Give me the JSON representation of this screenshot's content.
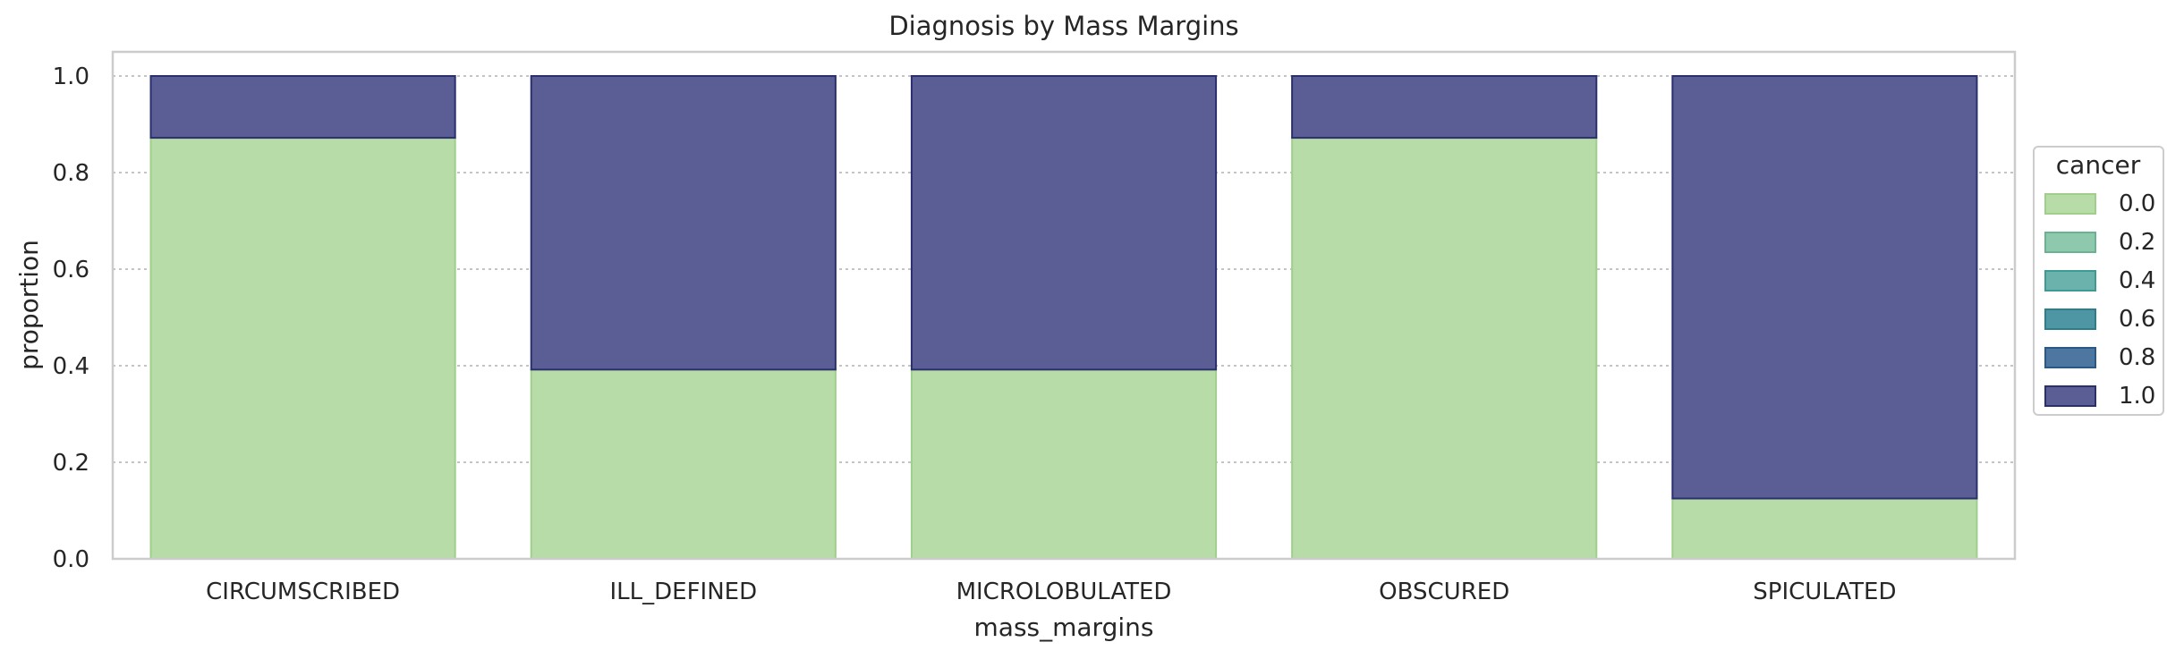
{
  "chart_data": {
    "type": "bar",
    "stacked": true,
    "normalized": true,
    "title": "Diagnosis by Mass Margins",
    "xlabel": "mass_margins",
    "ylabel": "proportion",
    "ylim": [
      0,
      1.05
    ],
    "yticks": [
      "0.0",
      "0.2",
      "0.4",
      "0.6",
      "0.8",
      "1.0"
    ],
    "ytick_values": [
      0,
      0.2,
      0.4,
      0.6,
      0.8,
      1.0
    ],
    "grid": "horizontal dotted",
    "categories": [
      "CIRCUMSCRIBED",
      "ILL_DEFINED",
      "MICROLOBULATED",
      "OBSCURED",
      "SPICULATED"
    ],
    "series": [
      {
        "name": "0.0",
        "color": "#b7dca7",
        "edge": "#a0cf8c",
        "values": [
          0.872,
          0.392,
          0.392,
          0.872,
          0.125
        ]
      },
      {
        "name": "1.0",
        "color": "#5b5e95",
        "edge": "#2a2f6e",
        "values": [
          0.128,
          0.608,
          0.608,
          0.128,
          0.875
        ]
      }
    ],
    "legend": {
      "title": "cancer",
      "position": "right",
      "entries": [
        {
          "label": "0.0",
          "color": "#b7dca7",
          "edge": "#a0cf8c"
        },
        {
          "label": "0.2",
          "color": "#8ec9ad",
          "edge": "#6bb293"
        },
        {
          "label": "0.4",
          "color": "#6bb2ac",
          "edge": "#3f9a93"
        },
        {
          "label": "0.6",
          "color": "#4e96a3",
          "edge": "#2e7d8a"
        },
        {
          "label": "0.8",
          "color": "#4d77a0",
          "edge": "#2b5986"
        },
        {
          "label": "1.0",
          "color": "#5b5e95",
          "edge": "#2a2f6e"
        }
      ]
    }
  }
}
